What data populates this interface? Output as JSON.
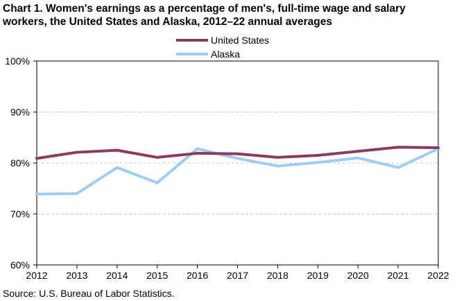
{
  "chart_data": {
    "type": "line",
    "title_lines": [
      "Chart 1. Women's earnings as a percentage of men's, full-time wage and salary",
      "workers, the United States and Alaska,  2012–22 annual averages"
    ],
    "x": [
      "2012",
      "2013",
      "2014",
      "2015",
      "2016",
      "2017",
      "2018",
      "2019",
      "2020",
      "2021",
      "2022"
    ],
    "y_ticks": [
      "60%",
      "70%",
      "80%",
      "90%",
      "100%"
    ],
    "ylim": [
      60,
      100
    ],
    "grid": "horizontal-dashed",
    "legend_placement": "top-center",
    "series": [
      {
        "name": "United States",
        "color": "#8b3a62",
        "values": [
          80.9,
          82.1,
          82.5,
          81.1,
          81.9,
          81.8,
          81.1,
          81.5,
          82.3,
          83.1,
          83.0
        ]
      },
      {
        "name": "Alaska",
        "color": "#9dcdf4",
        "values": [
          73.9,
          74.0,
          79.1,
          76.1,
          82.8,
          80.9,
          79.4,
          80.1,
          81.0,
          79.1,
          82.8
        ]
      }
    ]
  },
  "source": "Source:  U.S. Bureau of Labor Statistics."
}
